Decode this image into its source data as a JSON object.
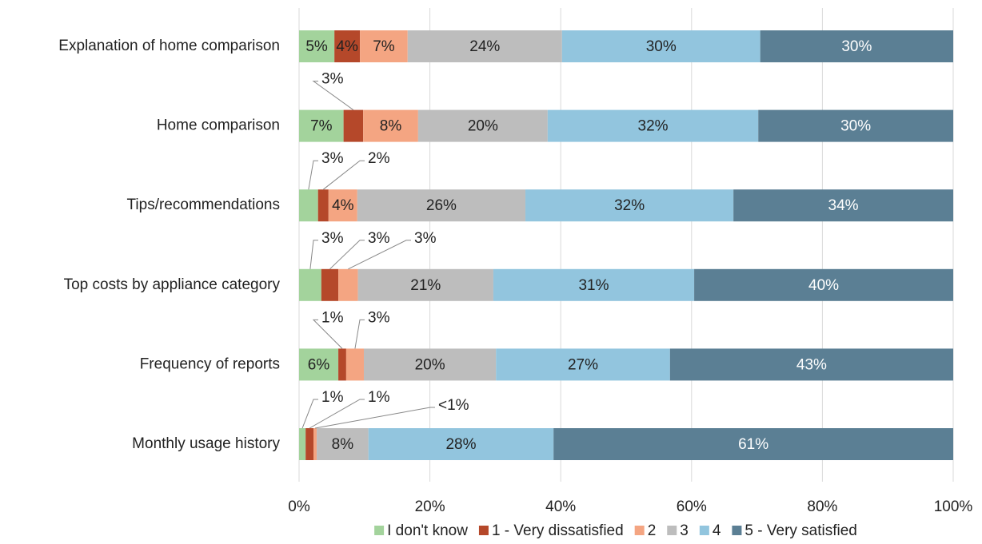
{
  "chart_data": {
    "type": "stacked_bar_horizontal",
    "categories": [
      "Explanation of home comparison",
      "Home comparison",
      "Tips/recommendations",
      "Top costs by appliance category",
      "Frequency of reports",
      "Monthly usage history"
    ],
    "series": [
      {
        "name": "I don't know",
        "color": "#a3d39c",
        "values": [
          5.4,
          6.8,
          2.9,
          3.4,
          6.0,
          1.0
        ],
        "value_labels": [
          "5%",
          "7%",
          "3%",
          "3%",
          "6%",
          "1%"
        ]
      },
      {
        "name": "1 - Very dissatisfied",
        "color": "#b5482a",
        "values": [
          3.9,
          3.0,
          1.6,
          2.6,
          1.2,
          1.2
        ],
        "value_labels": [
          "4%",
          "3%",
          "2%",
          "3%",
          "1%",
          "1%"
        ]
      },
      {
        "name": "2",
        "color": "#f4a582",
        "values": [
          7.3,
          8.4,
          4.4,
          3.0,
          2.7,
          0.5
        ],
        "value_labels": [
          "7%",
          "8%",
          "4%",
          "3%",
          "3%",
          "<1%"
        ]
      },
      {
        "name": "3",
        "color": "#bdbdbd",
        "values": [
          23.6,
          19.8,
          25.7,
          20.7,
          20.2,
          7.9
        ],
        "value_labels": [
          "24%",
          "20%",
          "26%",
          "21%",
          "20%",
          "8%"
        ]
      },
      {
        "name": "4",
        "color": "#92c5de",
        "values": [
          30.3,
          32.2,
          31.8,
          30.7,
          26.6,
          28.3
        ],
        "value_labels": [
          "30%",
          "32%",
          "32%",
          "31%",
          "27%",
          "28%"
        ]
      },
      {
        "name": "5 - Very satisfied",
        "color": "#5b7f94",
        "values": [
          29.5,
          29.8,
          33.6,
          39.6,
          43.3,
          61.1
        ],
        "value_labels": [
          "30%",
          "30%",
          "34%",
          "40%",
          "43%",
          "61%"
        ]
      }
    ],
    "xlim": [
      0,
      100
    ],
    "xticks": [
      {
        "value": 0,
        "label": "0%"
      },
      {
        "value": 20,
        "label": "20%"
      },
      {
        "value": 40,
        "label": "40%"
      },
      {
        "value": 60,
        "label": "60%"
      },
      {
        "value": 80,
        "label": "80%"
      },
      {
        "value": 100,
        "label": "100%"
      }
    ],
    "grid": true,
    "legend": "bottom"
  }
}
